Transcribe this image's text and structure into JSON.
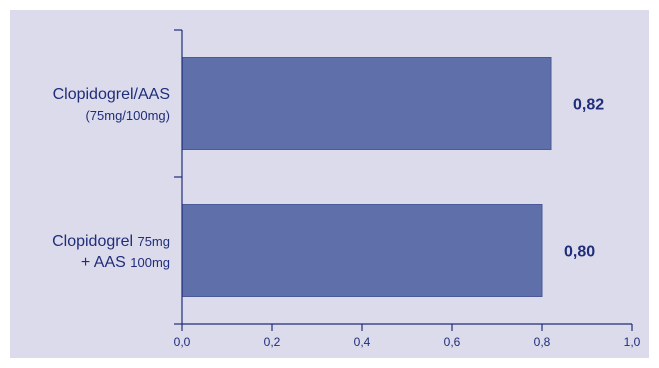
{
  "chart_data": {
    "type": "bar",
    "orientation": "horizontal",
    "categories": [
      {
        "lines": [
          [
            {
              "text": "Clopidogrel/AAS",
              "style": "main"
            }
          ],
          [
            {
              "text": "(75mg/100mg)",
              "style": "sub"
            }
          ]
        ]
      },
      {
        "lines": [
          [
            {
              "text": "Clopidogrel ",
              "style": "main"
            },
            {
              "text": "75mg",
              "style": "sub"
            }
          ],
          [
            {
              "text": "+ AAS ",
              "style": "main"
            },
            {
              "text": "100mg",
              "style": "sub"
            }
          ]
        ]
      }
    ],
    "values": [
      0.82,
      0.8
    ],
    "value_labels": [
      "0,82",
      "0,80"
    ],
    "xlim": [
      0,
      1.0
    ],
    "xticks": [
      0,
      0.2,
      0.4,
      0.6,
      0.8,
      1.0
    ],
    "xtick_labels": [
      "0,0",
      "0,2",
      "0,4",
      "0,6",
      "0,8",
      "1,0"
    ],
    "grid": false,
    "title": "",
    "xlabel": "",
    "ylabel": ""
  },
  "colors": {
    "background": "#dcdbeb",
    "bar": "#5f6faa",
    "bar_edge": "#4a5a98",
    "axis": "#1f2d7a",
    "text": "#1f2d7a"
  }
}
